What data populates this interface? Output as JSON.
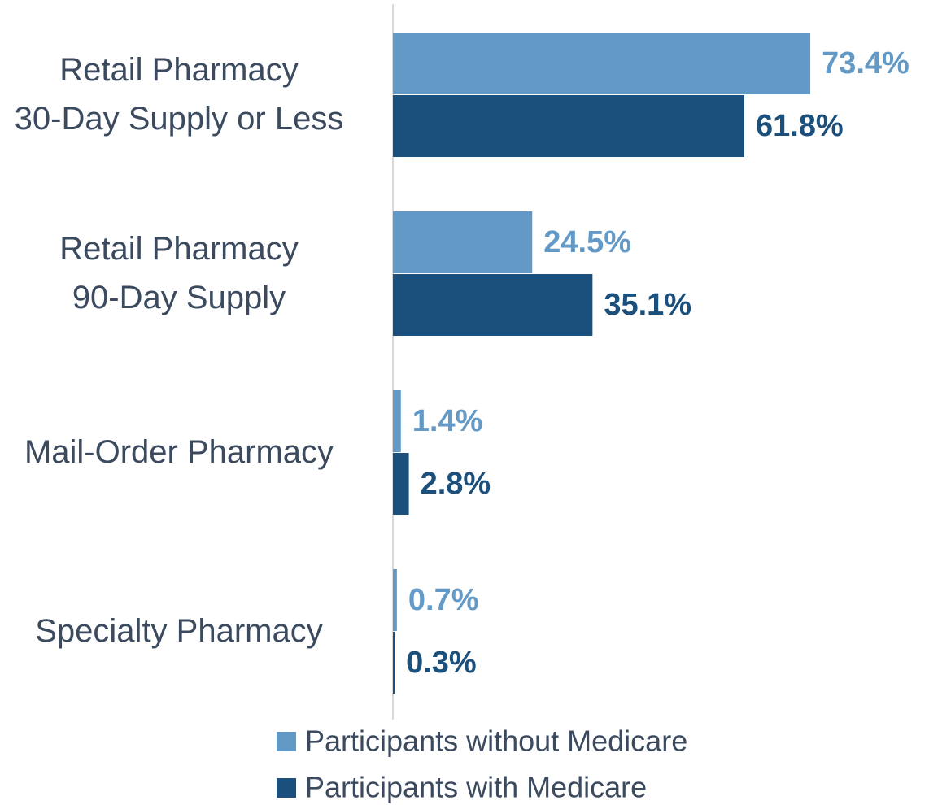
{
  "chart_data": {
    "type": "bar",
    "orientation": "horizontal",
    "categories": [
      "Retail Pharmacy\n30-Day Supply or Less",
      "Retail Pharmacy\n90-Day Supply",
      "Mail-Order Pharmacy",
      "Specialty Pharmacy"
    ],
    "series": [
      {
        "name": "Participants without Medicare",
        "color": "#6399c6",
        "values": [
          73.4,
          24.5,
          1.4,
          0.7
        ],
        "value_labels": [
          "73.4%",
          "24.5%",
          "1.4%",
          "0.7%"
        ]
      },
      {
        "name": "Participants with Medicare",
        "color": "#1b4f7c",
        "values": [
          61.8,
          35.1,
          2.8,
          0.3
        ],
        "value_labels": [
          "61.8%",
          "35.1%",
          "2.8%",
          "0.3%"
        ]
      }
    ],
    "grid": false
  }
}
